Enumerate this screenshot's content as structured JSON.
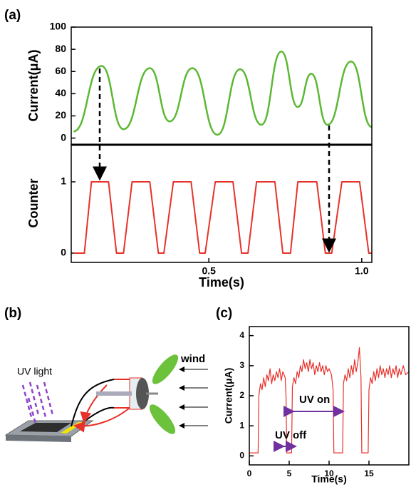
{
  "panels": [
    "(a)",
    "(b)",
    "(c)"
  ],
  "diagram": {
    "uv_label": "UV light",
    "wind_label": "wind"
  },
  "chart_data": [
    {
      "type": "line",
      "ylabel": "Current(μA)",
      "color": "#5cb833",
      "xlim": [
        0.05,
        1.033
      ],
      "ylim": [
        -6,
        100
      ],
      "yticks": [
        0,
        20,
        40,
        60,
        80,
        100
      ],
      "x": [
        0.058,
        0.149,
        0.221,
        0.307,
        0.372,
        0.446,
        0.528,
        0.602,
        0.672,
        0.737,
        0.791,
        0.835,
        0.888,
        0.965,
        1.033
      ],
      "values": [
        6,
        65,
        8,
        63,
        15,
        63,
        3,
        62,
        12,
        78,
        28,
        58,
        12,
        69,
        10
      ]
    },
    {
      "type": "line",
      "ylabel": "Counter",
      "xlabel": "Time(s)",
      "color": "#e8312a",
      "xlim": [
        0.05,
        1.033
      ],
      "ylim": [
        -0.13,
        1.52
      ],
      "yticks": [
        0,
        1
      ],
      "xticks": [
        0.5,
        {
          "value": 1,
          "label": "1.0"
        }
      ],
      "x": [
        0.058,
        0.093,
        0.116,
        0.172,
        0.198,
        0.221,
        0.249,
        0.307,
        0.335,
        0.353,
        0.384,
        0.442,
        0.47,
        0.488,
        0.521,
        0.579,
        0.607,
        0.628,
        0.656,
        0.716,
        0.742,
        0.767,
        0.791,
        0.853,
        0.881,
        0.902,
        0.935,
        0.993,
        1.023,
        1.033
      ],
      "values": [
        0,
        0,
        1,
        1,
        0,
        0,
        1,
        1,
        0,
        0,
        1,
        1,
        0,
        0,
        1,
        1,
        0,
        0,
        1,
        1,
        0,
        0,
        1,
        1,
        0,
        0,
        1,
        1,
        0,
        0
      ]
    },
    {
      "type": "line",
      "ylabel": "Current(μA)",
      "xlabel": "Time(s)",
      "color": "#e8312a",
      "xlim": [
        0,
        20
      ],
      "ylim": [
        -0.3,
        4.3
      ],
      "yticks": [
        0,
        1,
        2,
        3,
        4
      ],
      "xticks": [
        0,
        5,
        10,
        15
      ],
      "annotations": [
        "UV on",
        "UV off"
      ],
      "x": [
        0,
        1.1,
        1.2,
        1.4,
        1.6,
        1.8,
        2.0,
        2.2,
        2.4,
        2.6,
        2.8,
        3.0,
        3.2,
        3.4,
        3.6,
        3.8,
        4.0,
        4.2,
        4.5,
        4.6,
        4.7,
        5.3,
        5.4,
        5.6,
        5.8,
        6.0,
        6.2,
        6.4,
        6.6,
        6.8,
        7.0,
        7.2,
        7.4,
        7.6,
        7.8,
        8.0,
        8.2,
        8.4,
        8.6,
        8.8,
        9.0,
        9.2,
        9.4,
        9.6,
        9.8,
        10.0,
        10.3,
        10.5,
        10.6,
        11.7,
        11.8,
        12.0,
        12.2,
        12.4,
        12.6,
        12.8,
        13.0,
        13.2,
        13.4,
        13.6,
        13.8,
        14.0,
        14.1,
        14.9,
        15.0,
        15.2,
        15.4,
        15.6,
        15.8,
        16.0,
        16.2,
        16.4,
        16.6,
        16.8,
        17.0,
        17.2,
        17.4,
        17.6,
        17.8,
        18.0,
        18.2,
        18.4,
        18.6,
        18.8,
        19.0,
        19.3,
        19.6,
        20.0
      ],
      "values": [
        0.1,
        0.1,
        2.0,
        2.4,
        2.2,
        2.6,
        2.3,
        2.7,
        2.5,
        2.9,
        2.4,
        2.7,
        2.5,
        2.8,
        2.6,
        2.9,
        2.5,
        2.8,
        2.6,
        2.0,
        0.1,
        0.1,
        2.3,
        2.6,
        2.4,
        2.8,
        2.6,
        3.0,
        2.8,
        3.2,
        2.9,
        3.1,
        2.8,
        3.2,
        2.9,
        3.1,
        2.7,
        3.0,
        2.8,
        3.1,
        2.8,
        3.0,
        2.7,
        3.0,
        2.8,
        2.9,
        2.7,
        2.2,
        0.1,
        0.1,
        2.4,
        2.7,
        2.5,
        2.9,
        2.6,
        3.0,
        2.7,
        3.2,
        2.8,
        3.1,
        3.6,
        2.6,
        0.1,
        0.1,
        2.2,
        2.6,
        2.4,
        2.8,
        2.5,
        2.9,
        2.6,
        3.0,
        2.7,
        2.9,
        2.6,
        2.9,
        2.7,
        3.0,
        2.6,
        2.9,
        2.7,
        3.0,
        2.6,
        2.9,
        2.7,
        3.0,
        2.7,
        2.8
      ]
    }
  ]
}
